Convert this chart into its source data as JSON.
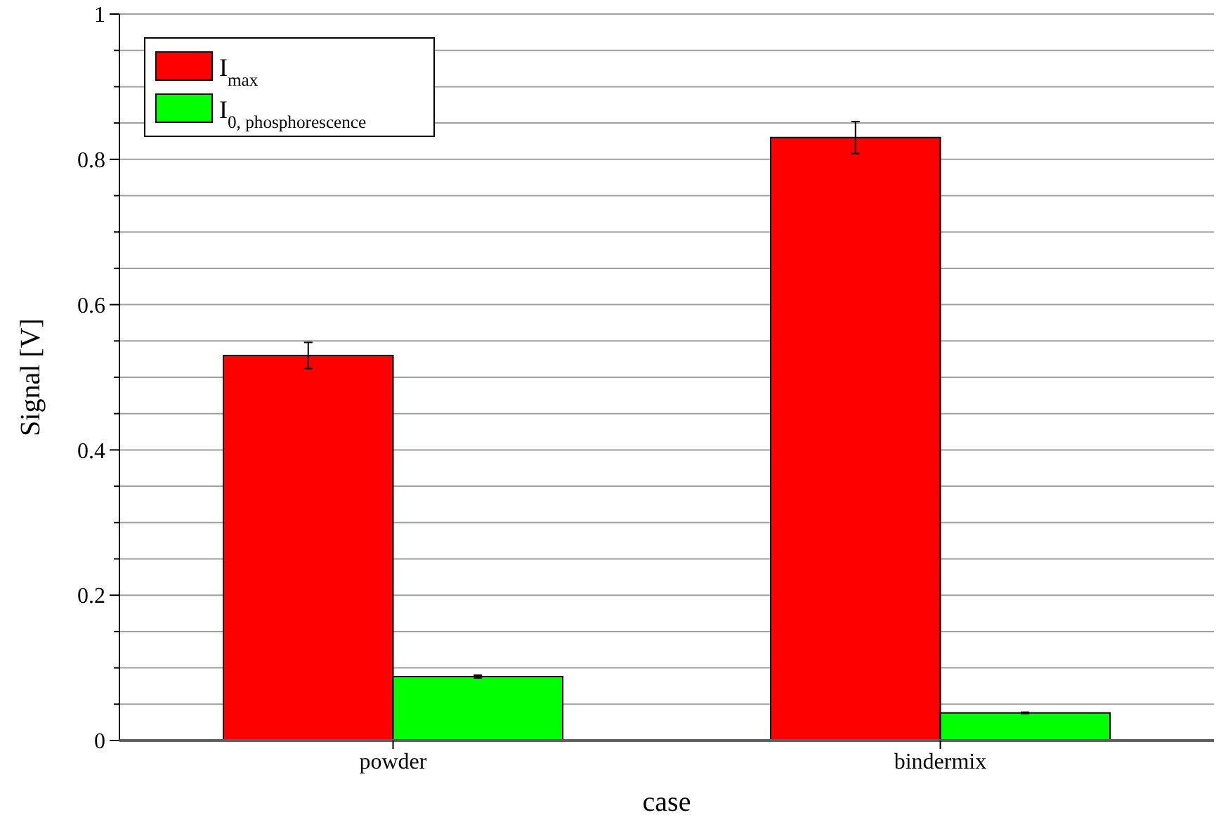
{
  "chart_data": {
    "type": "bar",
    "xlabel": "case",
    "ylabel": "Signal [V]",
    "categories": [
      "powder",
      "bindermix"
    ],
    "series": [
      {
        "name": "I$_{max}$",
        "color": "#ff0000",
        "values": [
          0.53,
          0.83
        ],
        "errors": [
          0.018,
          0.022
        ]
      },
      {
        "name": "I$_{0, phosphorescence}$",
        "color": "#00ff00",
        "values": [
          0.088,
          0.038
        ],
        "errors": [
          0.002,
          0.001
        ]
      }
    ],
    "ylim": [
      0,
      1
    ],
    "yticks": [
      0,
      {
        "value": 0.05,
        "label": null
      },
      {
        "value": 0.1,
        "label": null
      },
      {
        "value": 0.15,
        "label": null
      },
      0.2,
      {
        "value": 0.25,
        "label": null
      },
      {
        "value": 0.3,
        "label": null
      },
      {
        "value": 0.35,
        "label": null
      },
      0.4,
      {
        "value": 0.45,
        "label": null
      },
      {
        "value": 0.5,
        "label": null
      },
      {
        "value": 0.55,
        "label": null
      },
      0.6,
      {
        "value": 0.65,
        "label": null
      },
      {
        "value": 0.7,
        "label": null
      },
      {
        "value": 0.75,
        "label": null
      },
      0.8,
      {
        "value": 0.85,
        "label": null
      },
      {
        "value": 0.9,
        "label": null
      },
      {
        "value": 0.95,
        "label": null
      },
      1
    ],
    "grid": "y",
    "legend": "top left"
  }
}
